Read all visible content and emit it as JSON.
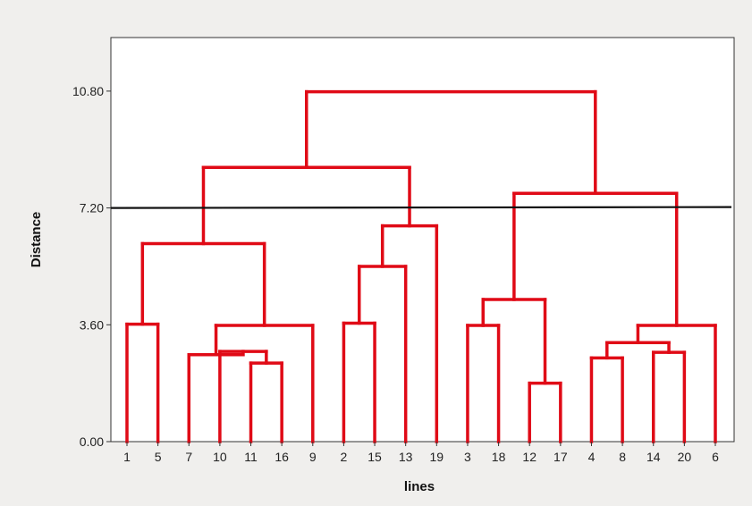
{
  "chart_data": {
    "type": "dendrogram",
    "xlabel": "lines",
    "ylabel": "Distance",
    "ylim": [
      0,
      12.45
    ],
    "yticks": [
      0.0,
      3.6,
      7.2,
      10.8
    ],
    "ytick_labels": [
      "0.00",
      "3.60",
      "7.20",
      "10.80"
    ],
    "leaf_order": [
      "1",
      "5",
      "7",
      "10",
      "11",
      "16",
      "9",
      "2",
      "15",
      "13",
      "19",
      "3",
      "18",
      "12",
      "17",
      "4",
      "8",
      "14",
      "20",
      "6"
    ],
    "merges": [
      {
        "left": "1",
        "right": "5",
        "height": 3.62
      },
      {
        "left": "11",
        "right": "16",
        "height": 2.42
      },
      {
        "left": "10",
        "right": "11-16",
        "height": 2.78
      },
      {
        "left": "7",
        "right": "10-11-16",
        "height": 2.68
      },
      {
        "left": "7-10-11-16",
        "right": "9",
        "height": 3.58
      },
      {
        "left": "1-5",
        "right": "7-10-11-16-9",
        "height": 6.1
      },
      {
        "left": "2",
        "right": "15",
        "height": 3.65
      },
      {
        "left": "2-15",
        "right": "13",
        "height": 5.4
      },
      {
        "left": "2-15-13",
        "right": "19",
        "height": 6.65
      },
      {
        "left": "1-5-7-10-11-16-9",
        "right": "2-15-13-19",
        "height": 8.45
      },
      {
        "left": "3",
        "right": "18",
        "height": 3.58
      },
      {
        "left": "12",
        "right": "17",
        "height": 1.8
      },
      {
        "left": "3-18",
        "right": "12-17",
        "height": 4.38
      },
      {
        "left": "4",
        "right": "8",
        "height": 2.58
      },
      {
        "left": "14",
        "right": "20",
        "height": 2.75
      },
      {
        "left": "4-8",
        "right": "14-20",
        "height": 3.05
      },
      {
        "left": "4-8-14-20",
        "right": "6",
        "height": 3.58
      },
      {
        "left": "3-18-12-17",
        "right": "4-8-14-20-6",
        "height": 7.65
      },
      {
        "left": "1-5-7-10-11-16-9-2-15-13-19",
        "right": "3-18-12-17-4-8-14-20-6",
        "height": 10.78
      }
    ],
    "cut_line": 7.2,
    "colors": {
      "branch": "#e00a16",
      "cut_line": "#111111",
      "background": "#f0efed",
      "plot_background": "#ffffff"
    }
  }
}
